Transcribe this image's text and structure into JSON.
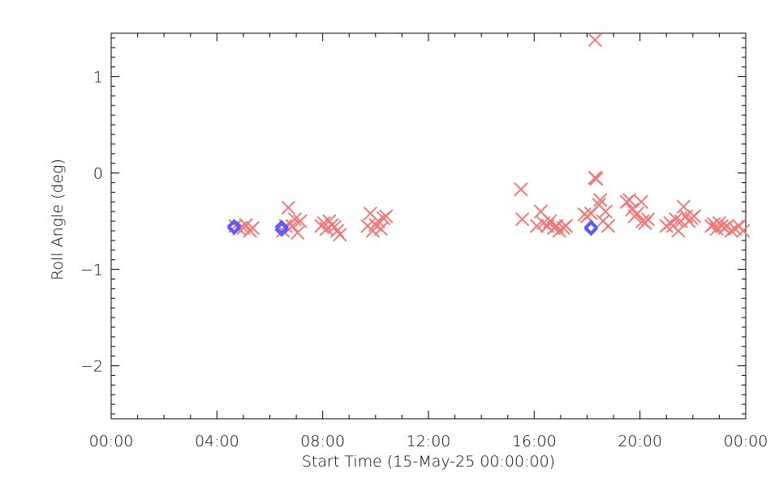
{
  "chart_data": {
    "type": "scatter",
    "title": "",
    "xlabel": "Start Time (15-May-25 00:00:00)",
    "ylabel": "Roll Angle (deg)",
    "x_unit": "hours",
    "xlim": [
      0,
      24
    ],
    "ylim": [
      -2.55,
      1.45
    ],
    "x_ticks": [
      {
        "value": 0,
        "label": "00:00"
      },
      {
        "value": 4,
        "label": "04:00"
      },
      {
        "value": 8,
        "label": "08:00"
      },
      {
        "value": 12,
        "label": "12:00"
      },
      {
        "value": 16,
        "label": "16:00"
      },
      {
        "value": 20,
        "label": "20:00"
      },
      {
        "value": 24,
        "label": "00:00"
      }
    ],
    "y_ticks": [
      {
        "value": 1,
        "label": "1"
      },
      {
        "value": 0,
        "label": "0"
      },
      {
        "value": -1,
        "label": "−1"
      },
      {
        "value": -2,
        "label": "−2"
      }
    ],
    "grid": false,
    "series": [
      {
        "marker": "x",
        "color": "#f07878",
        "points": [
          [
            4.7,
            -0.55
          ],
          [
            4.85,
            -0.58
          ],
          [
            5.0,
            -0.57
          ],
          [
            5.1,
            -0.54
          ],
          [
            5.25,
            -0.6
          ],
          [
            5.35,
            -0.57
          ],
          [
            6.5,
            -0.6
          ],
          [
            6.6,
            -0.55
          ],
          [
            6.7,
            -0.36
          ],
          [
            6.85,
            -0.55
          ],
          [
            6.95,
            -0.48
          ],
          [
            7.05,
            -0.62
          ],
          [
            7.15,
            -0.5
          ],
          [
            7.95,
            -0.55
          ],
          [
            8.05,
            -0.52
          ],
          [
            8.15,
            -0.58
          ],
          [
            8.25,
            -0.5
          ],
          [
            8.35,
            -0.54
          ],
          [
            8.45,
            -0.56
          ],
          [
            8.55,
            -0.6
          ],
          [
            8.65,
            -0.64
          ],
          [
            9.7,
            -0.55
          ],
          [
            9.8,
            -0.42
          ],
          [
            9.9,
            -0.6
          ],
          [
            10.0,
            -0.54
          ],
          [
            10.1,
            -0.5
          ],
          [
            10.2,
            -0.58
          ],
          [
            10.3,
            -0.47
          ],
          [
            10.4,
            -0.45
          ],
          [
            15.5,
            -0.17
          ],
          [
            15.55,
            -0.48
          ],
          [
            16.1,
            -0.55
          ],
          [
            16.25,
            -0.4
          ],
          [
            16.35,
            -0.52
          ],
          [
            16.5,
            -0.55
          ],
          [
            16.6,
            -0.5
          ],
          [
            16.75,
            -0.57
          ],
          [
            16.85,
            -0.55
          ],
          [
            16.95,
            -0.6
          ],
          [
            17.1,
            -0.57
          ],
          [
            17.2,
            -0.55
          ],
          [
            17.9,
            -0.43
          ],
          [
            18.0,
            -0.45
          ],
          [
            18.15,
            -0.42
          ],
          [
            18.3,
            -0.05
          ],
          [
            18.35,
            -0.06
          ],
          [
            18.45,
            -0.33
          ],
          [
            18.5,
            -0.28
          ],
          [
            18.6,
            -0.5
          ],
          [
            18.7,
            -0.4
          ],
          [
            18.8,
            -0.55
          ],
          [
            18.3,
            1.38
          ],
          [
            19.5,
            -0.3
          ],
          [
            19.6,
            -0.28
          ],
          [
            19.7,
            -0.38
          ],
          [
            19.8,
            -0.45
          ],
          [
            19.9,
            -0.42
          ],
          [
            20.05,
            -0.3
          ],
          [
            20.1,
            -0.5
          ],
          [
            20.2,
            -0.52
          ],
          [
            20.3,
            -0.48
          ],
          [
            21.0,
            -0.55
          ],
          [
            21.15,
            -0.52
          ],
          [
            21.25,
            -0.55
          ],
          [
            21.35,
            -0.48
          ],
          [
            21.45,
            -0.6
          ],
          [
            21.55,
            -0.5
          ],
          [
            21.65,
            -0.35
          ],
          [
            21.75,
            -0.45
          ],
          [
            21.85,
            -0.5
          ],
          [
            21.95,
            -0.47
          ],
          [
            22.05,
            -0.45
          ],
          [
            22.7,
            -0.55
          ],
          [
            22.8,
            -0.53
          ],
          [
            22.9,
            -0.58
          ],
          [
            23.0,
            -0.52
          ],
          [
            23.1,
            -0.55
          ],
          [
            23.2,
            -0.57
          ],
          [
            23.3,
            -0.55
          ],
          [
            23.45,
            -0.6
          ],
          [
            23.6,
            -0.58
          ],
          [
            23.75,
            -0.55
          ],
          [
            23.9,
            -0.6
          ]
        ]
      },
      {
        "marker": "diamond",
        "color": "#5a5aff",
        "points": [
          [
            4.65,
            -0.55
          ],
          [
            4.65,
            -0.57
          ],
          [
            6.45,
            -0.56
          ],
          [
            6.45,
            -0.59
          ],
          [
            18.15,
            -0.56
          ],
          [
            18.15,
            -0.58
          ]
        ]
      }
    ]
  }
}
